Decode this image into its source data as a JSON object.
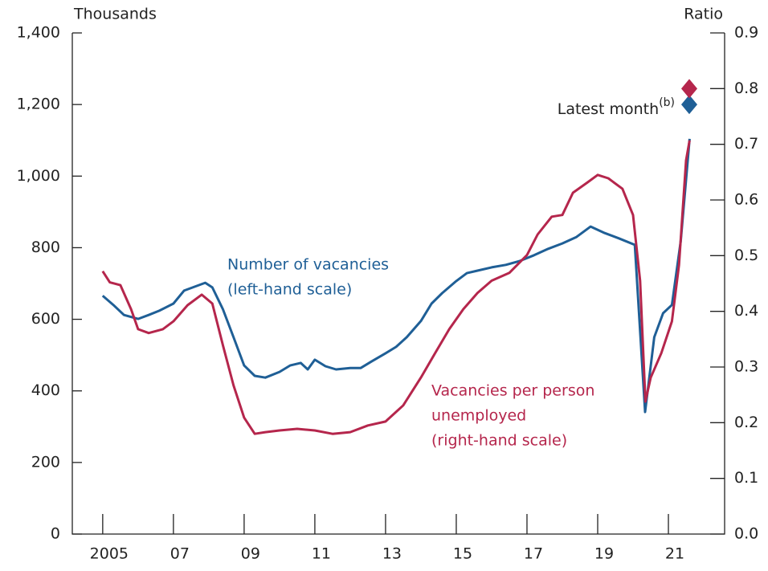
{
  "chart_data": {
    "type": "line",
    "y_label": "Thousands",
    "y2_label": "Ratio",
    "xlim": [
      2004.14,
      2022.59
    ],
    "xticks": [
      2005,
      {
        "value": 2007,
        "label": "07"
      },
      {
        "value": 2009,
        "label": "09"
      },
      {
        "value": 2011,
        "label": "11"
      },
      {
        "value": 2013,
        "label": "13"
      },
      {
        "value": 2015,
        "label": "15"
      },
      {
        "value": 2017,
        "label": "17"
      },
      {
        "value": 2019,
        "label": "19"
      },
      {
        "value": 2021,
        "label": "21"
      }
    ],
    "ylim": [
      0,
      1400
    ],
    "yticks": [
      0,
      200,
      400,
      600,
      800,
      {
        "value": 1000,
        "label": "1,000"
      },
      {
        "value": 1200,
        "label": "1,200"
      },
      {
        "value": 1400,
        "label": "1,400"
      }
    ],
    "y2lim": [
      0,
      0.9
    ],
    "y2ticks": [
      {
        "value": 0,
        "label": "0.0"
      },
      0.1,
      0.2,
      0.3,
      0.4,
      0.5,
      0.6,
      0.7,
      0.8,
      0.9
    ],
    "latest_month": {
      "label": "Latest month",
      "note": "(b)"
    },
    "series": [
      {
        "label_lines": [
          "Number of vacancies",
          "(left-hand scale)"
        ],
        "color": "#1f5f96",
        "axis": "y",
        "latest": 1200,
        "x": [
          2005.0,
          2005.3,
          2005.6,
          2006.0,
          2006.3,
          2006.6,
          2007.0,
          2007.3,
          2007.6,
          2007.9,
          2008.1,
          2008.4,
          2008.7,
          2009.0,
          2009.3,
          2009.6,
          2010.0,
          2010.3,
          2010.6,
          2010.8,
          2011.0,
          2011.3,
          2011.6,
          2012.0,
          2012.3,
          2012.6,
          2013.0,
          2013.3,
          2013.6,
          2014.0,
          2014.3,
          2014.6,
          2015.0,
          2015.3,
          2015.6,
          2016.0,
          2016.4,
          2016.8,
          2017.2,
          2017.6,
          2018.0,
          2018.4,
          2018.8,
          2019.2,
          2019.6,
          2020.05,
          2020.34,
          2020.6,
          2020.85,
          2021.1,
          2021.35,
          2021.6
        ],
        "values": [
          666,
          640,
          612,
          601,
          612,
          624,
          644,
          680,
          691,
          702,
          689,
          628,
          550,
          471,
          442,
          437,
          453,
          471,
          478,
          460,
          487,
          469,
          460,
          464,
          464,
          482,
          505,
          523,
          550,
          595,
          644,
          673,
          707,
          729,
          736,
          745,
          752,
          763,
          779,
          797,
          812,
          830,
          859,
          841,
          826,
          808,
          341,
          550,
          617,
          640,
          819,
          1104
        ]
      },
      {
        "label_lines": [
          "Vacancies per person",
          "unemployed",
          "(right-hand scale)"
        ],
        "color": "#b5264c",
        "axis": "y2",
        "latest": 0.8,
        "x": [
          2005.0,
          2005.2,
          2005.5,
          2005.8,
          2006.0,
          2006.3,
          2006.7,
          2007.0,
          2007.4,
          2007.8,
          2008.1,
          2008.4,
          2008.7,
          2009.0,
          2009.3,
          2009.6,
          2010.0,
          2010.5,
          2011.0,
          2011.5,
          2012.0,
          2012.5,
          2013.0,
          2013.5,
          2014.0,
          2014.4,
          2014.8,
          2015.2,
          2015.6,
          2016.0,
          2016.5,
          2017.0,
          2017.3,
          2017.7,
          2018.0,
          2018.3,
          2018.7,
          2019.0,
          2019.3,
          2019.7,
          2020.0,
          2020.2,
          2020.35,
          2020.5,
          2020.8,
          2021.1,
          2021.3,
          2021.5,
          2021.6
        ],
        "values": [
          0.472,
          0.452,
          0.447,
          0.404,
          0.368,
          0.361,
          0.368,
          0.382,
          0.411,
          0.43,
          0.414,
          0.339,
          0.267,
          0.209,
          0.18,
          0.183,
          0.186,
          0.189,
          0.186,
          0.18,
          0.183,
          0.195,
          0.202,
          0.231,
          0.281,
          0.325,
          0.368,
          0.404,
          0.433,
          0.455,
          0.469,
          0.501,
          0.538,
          0.57,
          0.573,
          0.613,
          0.631,
          0.645,
          0.639,
          0.62,
          0.573,
          0.455,
          0.238,
          0.281,
          0.325,
          0.382,
          0.483,
          0.671,
          0.707
        ]
      }
    ]
  }
}
